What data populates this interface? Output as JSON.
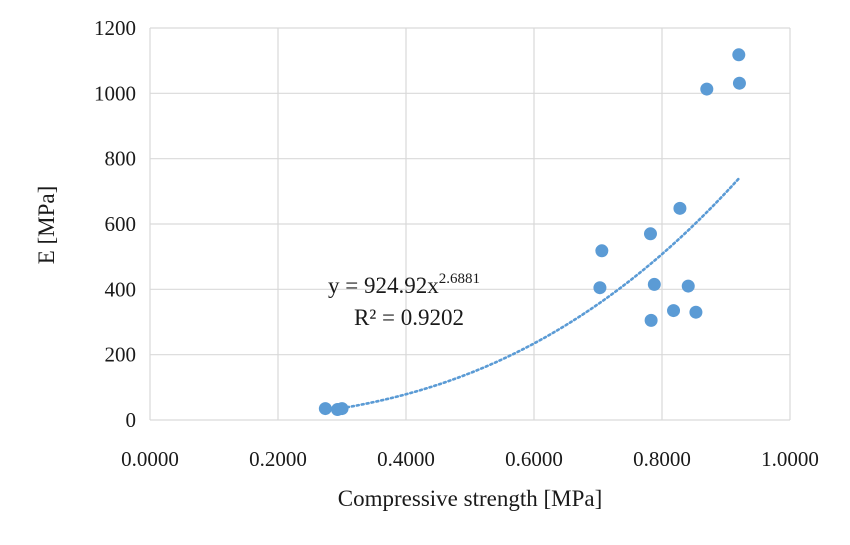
{
  "chart_data": {
    "type": "scatter",
    "xlabel": "Compressive strength [MPa]",
    "ylabel": "E [MPa]",
    "xlim": [
      0,
      1
    ],
    "ylim": [
      0,
      1200
    ],
    "x_ticks": [
      "0.0000",
      "0.2000",
      "0.4000",
      "0.6000",
      "0.8000",
      "1.0000"
    ],
    "y_ticks": [
      "0",
      "200",
      "400",
      "600",
      "800",
      "1000",
      "1200"
    ],
    "grid": true,
    "marker_color": "#5b9bd5",
    "trendline_color": "#5b9bd5",
    "points": [
      {
        "x": 0.274,
        "y": 35
      },
      {
        "x": 0.293,
        "y": 32
      },
      {
        "x": 0.3,
        "y": 35
      },
      {
        "x": 0.703,
        "y": 405
      },
      {
        "x": 0.706,
        "y": 518
      },
      {
        "x": 0.782,
        "y": 570
      },
      {
        "x": 0.783,
        "y": 305
      },
      {
        "x": 0.788,
        "y": 415
      },
      {
        "x": 0.818,
        "y": 335
      },
      {
        "x": 0.828,
        "y": 648
      },
      {
        "x": 0.841,
        "y": 410
      },
      {
        "x": 0.853,
        "y": 330
      },
      {
        "x": 0.87,
        "y": 1013
      },
      {
        "x": 0.92,
        "y": 1118
      },
      {
        "x": 0.921,
        "y": 1031
      }
    ],
    "trendline": {
      "type": "power",
      "coefficient": 924.92,
      "exponent": 2.6881,
      "x_range": [
        0.3,
        0.92
      ],
      "equation_prefix": "y = 924.92x",
      "equation_exponent": "2.6881",
      "r2_label": "R² = 0.9202"
    }
  }
}
